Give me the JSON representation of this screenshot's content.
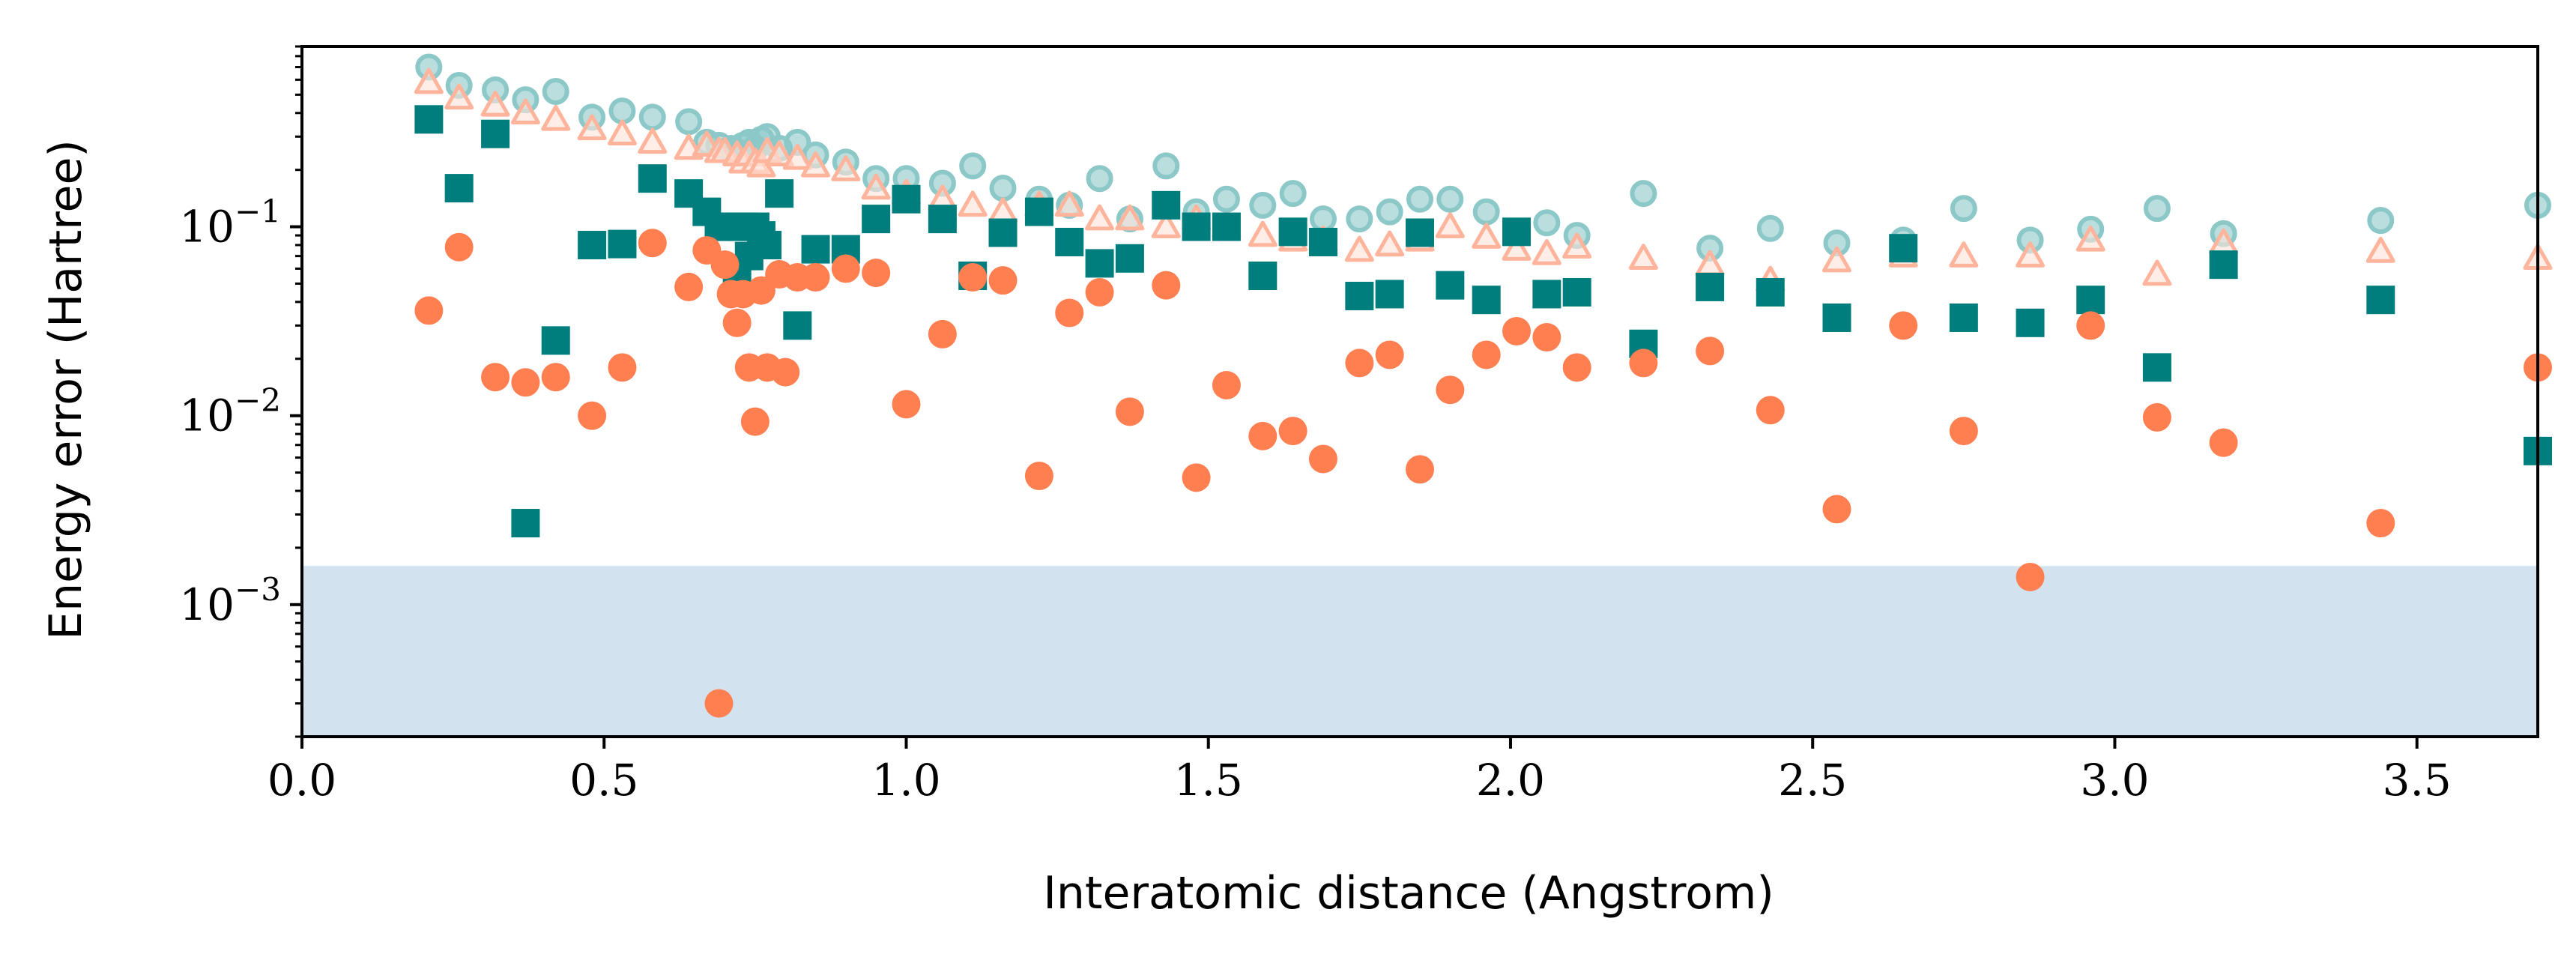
{
  "chart_data": {
    "type": "scatter",
    "title": "",
    "xlabel": "Interatomic distance (Angstrom)",
    "ylabel": "Energy error (Hartree)",
    "xlim": [
      0.0,
      3.7
    ],
    "ylim": [
      0.0002,
      0.9
    ],
    "yscale": "log",
    "x_ticks": [
      "0.0",
      "0.5",
      "1.0",
      "1.5",
      "2.0",
      "2.5",
      "3.0",
      "3.5"
    ],
    "y_ticks": [
      {
        "base": "10",
        "exp": "−1",
        "value": 0.1
      },
      {
        "base": "10",
        "exp": "−2",
        "value": 0.01
      },
      {
        "base": "10",
        "exp": "−3",
        "value": 0.001
      }
    ],
    "legend": false,
    "shaded_band": {
      "y_from": 0.0002,
      "y_to": 0.0016,
      "color": "#d2e3ef"
    },
    "colors": {
      "teal": "#007d7d",
      "teal_light": "#8cc8c8",
      "orange": "#ff7f50",
      "orange_light": "#ffb49b"
    },
    "series": [
      {
        "marker": "circle-hollow-teal",
        "points": [
          [
            0.21,
            0.7
          ],
          [
            0.26,
            0.56
          ],
          [
            0.32,
            0.53
          ],
          [
            0.37,
            0.47
          ],
          [
            0.42,
            0.52
          ],
          [
            0.48,
            0.38
          ],
          [
            0.53,
            0.41
          ],
          [
            0.58,
            0.38
          ],
          [
            0.64,
            0.36
          ],
          [
            0.67,
            0.28
          ],
          [
            0.69,
            0.27
          ],
          [
            0.71,
            0.26
          ],
          [
            0.72,
            0.25
          ],
          [
            0.73,
            0.27
          ],
          [
            0.74,
            0.28
          ],
          [
            0.75,
            0.26
          ],
          [
            0.76,
            0.29
          ],
          [
            0.77,
            0.3
          ],
          [
            0.79,
            0.26
          ],
          [
            0.82,
            0.28
          ],
          [
            0.85,
            0.24
          ],
          [
            0.9,
            0.22
          ],
          [
            0.95,
            0.18
          ],
          [
            1.0,
            0.18
          ],
          [
            1.06,
            0.17
          ],
          [
            1.11,
            0.21
          ],
          [
            1.16,
            0.16
          ],
          [
            1.22,
            0.14
          ],
          [
            1.27,
            0.13
          ],
          [
            1.32,
            0.18
          ],
          [
            1.37,
            0.11
          ],
          [
            1.43,
            0.21
          ],
          [
            1.48,
            0.12
          ],
          [
            1.53,
            0.14
          ],
          [
            1.59,
            0.13
          ],
          [
            1.64,
            0.15
          ],
          [
            1.69,
            0.11
          ],
          [
            1.75,
            0.11
          ],
          [
            1.8,
            0.12
          ],
          [
            1.85,
            0.14
          ],
          [
            1.9,
            0.14
          ],
          [
            1.96,
            0.12
          ],
          [
            2.06,
            0.105
          ],
          [
            2.11,
            0.09
          ],
          [
            2.22,
            0.15
          ],
          [
            2.33,
            0.077
          ],
          [
            2.43,
            0.098
          ],
          [
            2.54,
            0.082
          ],
          [
            2.65,
            0.085
          ],
          [
            2.75,
            0.125
          ],
          [
            2.86,
            0.085
          ],
          [
            2.96,
            0.097
          ],
          [
            3.07,
            0.125
          ],
          [
            3.18,
            0.092
          ],
          [
            3.44,
            0.108
          ],
          [
            3.7,
            0.13
          ]
        ]
      },
      {
        "marker": "triangle-hollow-orange",
        "points": [
          [
            0.21,
            0.58
          ],
          [
            0.26,
            0.48
          ],
          [
            0.32,
            0.44
          ],
          [
            0.37,
            0.4
          ],
          [
            0.42,
            0.37
          ],
          [
            0.48,
            0.33
          ],
          [
            0.53,
            0.31
          ],
          [
            0.58,
            0.28
          ],
          [
            0.64,
            0.26
          ],
          [
            0.67,
            0.27
          ],
          [
            0.69,
            0.25
          ],
          [
            0.7,
            0.25
          ],
          [
            0.72,
            0.24
          ],
          [
            0.73,
            0.22
          ],
          [
            0.74,
            0.24
          ],
          [
            0.75,
            0.22
          ],
          [
            0.76,
            0.21
          ],
          [
            0.77,
            0.25
          ],
          [
            0.79,
            0.24
          ],
          [
            0.82,
            0.23
          ],
          [
            0.85,
            0.21
          ],
          [
            0.9,
            0.2
          ],
          [
            0.95,
            0.16
          ],
          [
            1.0,
            0.15
          ],
          [
            1.06,
            0.14
          ],
          [
            1.11,
            0.13
          ],
          [
            1.16,
            0.12
          ],
          [
            1.22,
            0.13
          ],
          [
            1.27,
            0.13
          ],
          [
            1.32,
            0.11
          ],
          [
            1.37,
            0.11
          ],
          [
            1.43,
            0.1
          ],
          [
            1.48,
            0.11
          ],
          [
            1.53,
            0.1
          ],
          [
            1.59,
            0.09
          ],
          [
            1.64,
            0.085
          ],
          [
            1.69,
            0.085
          ],
          [
            1.75,
            0.075
          ],
          [
            1.8,
            0.08
          ],
          [
            1.85,
            0.085
          ],
          [
            1.9,
            0.1
          ],
          [
            1.96,
            0.088
          ],
          [
            2.01,
            0.076
          ],
          [
            2.06,
            0.072
          ],
          [
            2.11,
            0.078
          ],
          [
            2.22,
            0.068
          ],
          [
            2.33,
            0.063
          ],
          [
            2.43,
            0.052
          ],
          [
            2.54,
            0.066
          ],
          [
            2.65,
            0.07
          ],
          [
            2.75,
            0.07
          ],
          [
            2.86,
            0.07
          ],
          [
            2.96,
            0.085
          ],
          [
            3.07,
            0.056
          ],
          [
            3.18,
            0.082
          ],
          [
            3.44,
            0.074
          ],
          [
            3.7,
            0.068
          ]
        ]
      },
      {
        "marker": "square-teal",
        "points": [
          [
            0.21,
            0.37
          ],
          [
            0.26,
            0.16
          ],
          [
            0.32,
            0.31
          ],
          [
            0.37,
            0.0027
          ],
          [
            0.42,
            0.025
          ],
          [
            0.48,
            0.08
          ],
          [
            0.53,
            0.081
          ],
          [
            0.58,
            0.18
          ],
          [
            0.64,
            0.15
          ],
          [
            0.67,
            0.12
          ],
          [
            0.69,
            0.1
          ],
          [
            0.71,
            0.1
          ],
          [
            0.72,
            0.06
          ],
          [
            0.73,
            0.1
          ],
          [
            0.74,
            0.07
          ],
          [
            0.75,
            0.1
          ],
          [
            0.76,
            0.09
          ],
          [
            0.77,
            0.08
          ],
          [
            0.79,
            0.15
          ],
          [
            0.82,
            0.03
          ],
          [
            0.85,
            0.076
          ],
          [
            0.9,
            0.076
          ],
          [
            0.95,
            0.11
          ],
          [
            1.0,
            0.14
          ],
          [
            1.06,
            0.11
          ],
          [
            1.11,
            0.055
          ],
          [
            1.16,
            0.093
          ],
          [
            1.22,
            0.12
          ],
          [
            1.27,
            0.083
          ],
          [
            1.32,
            0.064
          ],
          [
            1.37,
            0.068
          ],
          [
            1.43,
            0.13
          ],
          [
            1.48,
            0.1
          ],
          [
            1.53,
            0.1
          ],
          [
            1.59,
            0.055
          ],
          [
            1.64,
            0.094
          ],
          [
            1.69,
            0.083
          ],
          [
            1.75,
            0.043
          ],
          [
            1.8,
            0.044
          ],
          [
            1.85,
            0.093
          ],
          [
            1.9,
            0.049
          ],
          [
            1.96,
            0.041
          ],
          [
            2.01,
            0.094
          ],
          [
            2.06,
            0.044
          ],
          [
            2.11,
            0.045
          ],
          [
            2.22,
            0.024
          ],
          [
            2.33,
            0.048
          ],
          [
            2.43,
            0.045
          ],
          [
            2.54,
            0.033
          ],
          [
            2.65,
            0.077
          ],
          [
            2.75,
            0.033
          ],
          [
            2.86,
            0.031
          ],
          [
            2.96,
            0.041
          ],
          [
            3.07,
            0.018
          ],
          [
            3.18,
            0.063
          ],
          [
            3.44,
            0.041
          ],
          [
            3.7,
            0.0065
          ]
        ]
      },
      {
        "marker": "circle-orange",
        "points": [
          [
            0.21,
            0.036
          ],
          [
            0.26,
            0.078
          ],
          [
            0.32,
            0.016
          ],
          [
            0.37,
            0.015
          ],
          [
            0.42,
            0.016
          ],
          [
            0.48,
            0.01
          ],
          [
            0.53,
            0.018
          ],
          [
            0.58,
            0.082
          ],
          [
            0.64,
            0.048
          ],
          [
            0.67,
            0.075
          ],
          [
            0.69,
            0.0003
          ],
          [
            0.7,
            0.063
          ],
          [
            0.71,
            0.044
          ],
          [
            0.72,
            0.031
          ],
          [
            0.73,
            0.044
          ],
          [
            0.74,
            0.018
          ],
          [
            0.75,
            0.0093
          ],
          [
            0.76,
            0.046
          ],
          [
            0.77,
            0.018
          ],
          [
            0.79,
            0.056
          ],
          [
            0.8,
            0.017
          ],
          [
            0.82,
            0.054
          ],
          [
            0.85,
            0.054
          ],
          [
            0.9,
            0.06
          ],
          [
            0.95,
            0.057
          ],
          [
            1.0,
            0.0115
          ],
          [
            1.06,
            0.027
          ],
          [
            1.11,
            0.054
          ],
          [
            1.16,
            0.052
          ],
          [
            1.22,
            0.0048
          ],
          [
            1.27,
            0.035
          ],
          [
            1.32,
            0.045
          ],
          [
            1.37,
            0.0105
          ],
          [
            1.43,
            0.049
          ],
          [
            1.48,
            0.0047
          ],
          [
            1.53,
            0.0145
          ],
          [
            1.59,
            0.0078
          ],
          [
            1.64,
            0.0083
          ],
          [
            1.69,
            0.0059
          ],
          [
            1.75,
            0.019
          ],
          [
            1.8,
            0.021
          ],
          [
            1.85,
            0.0052
          ],
          [
            1.9,
            0.0137
          ],
          [
            1.96,
            0.021
          ],
          [
            2.01,
            0.028
          ],
          [
            2.06,
            0.026
          ],
          [
            2.11,
            0.018
          ],
          [
            2.22,
            0.019
          ],
          [
            2.33,
            0.022
          ],
          [
            2.43,
            0.0107
          ],
          [
            2.54,
            0.0032
          ],
          [
            2.65,
            0.03
          ],
          [
            2.75,
            0.0083
          ],
          [
            2.86,
            0.0014
          ],
          [
            2.96,
            0.03
          ],
          [
            3.07,
            0.0098
          ],
          [
            3.18,
            0.0072
          ],
          [
            3.44,
            0.0027
          ],
          [
            3.7,
            0.018
          ]
        ]
      }
    ]
  }
}
